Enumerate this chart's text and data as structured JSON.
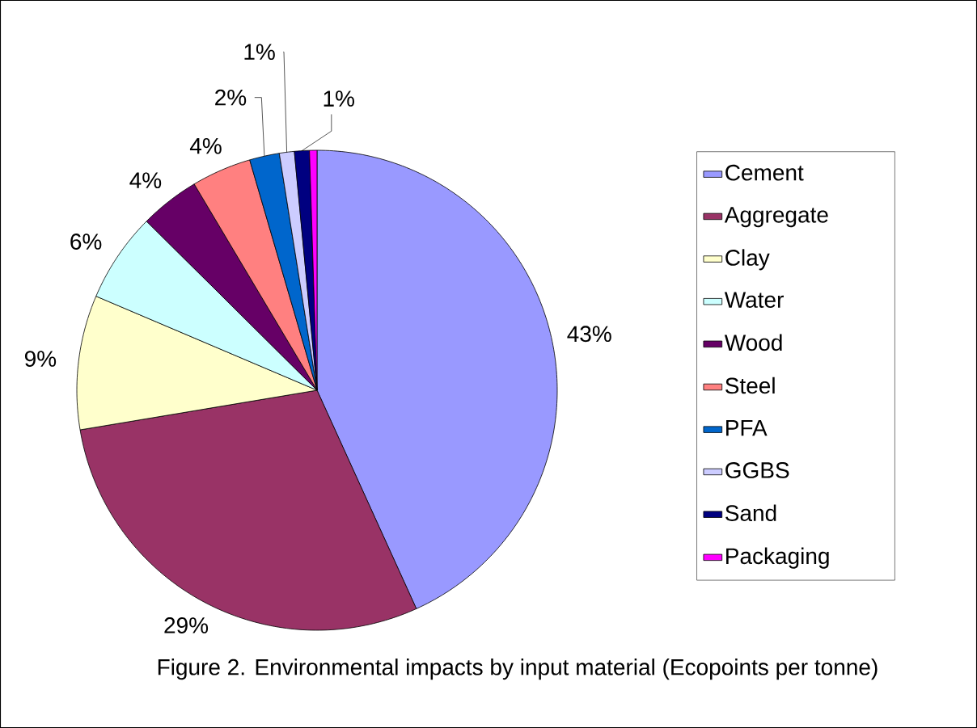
{
  "chart_data": {
    "type": "pie",
    "title": "Figure 2. Environmental impacts by input material (Ecopoints per tonne)",
    "categories": [
      "Cement",
      "Aggregate",
      "Clay",
      "Water",
      "Wood",
      "Steel",
      "PFA",
      "GGBS",
      "Sand",
      "Packaging"
    ],
    "values": [
      43,
      29,
      9,
      6,
      4,
      4,
      2,
      1,
      1,
      0.5
    ],
    "value_labels": [
      "43%",
      "29%",
      "9%",
      "6%",
      "4%",
      "4%",
      "2%",
      "1%",
      "1%",
      null
    ],
    "colors": [
      "#9999ff",
      "#993366",
      "#ffffcc",
      "#ccffff",
      "#660066",
      "#ff8080",
      "#0066cc",
      "#ccccff",
      "#000080",
      "#ff00ff"
    ],
    "legend": "right"
  }
}
